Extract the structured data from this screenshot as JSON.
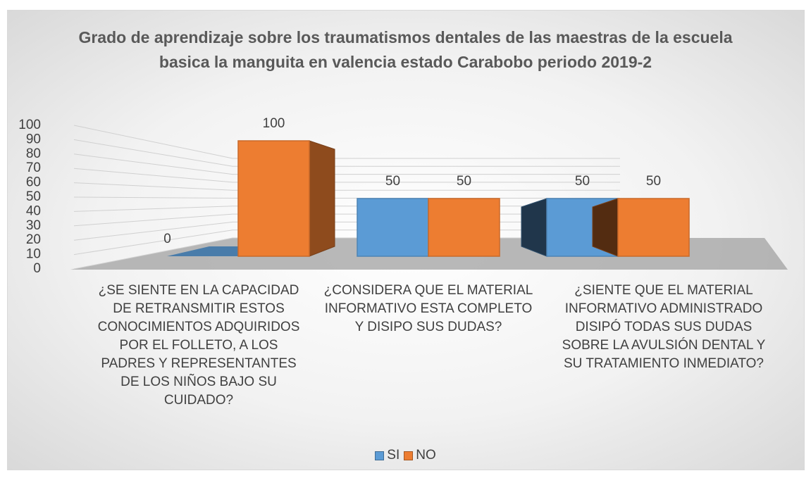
{
  "chart_data": {
    "type": "bar3d",
    "title": "Grado de aprendizaje sobre los traumatismos dentales de las maestras de la escuela basica la manguita en valencia estado Carabobo periodo 2019-2",
    "categories": [
      "¿SE SIENTE EN LA CAPACIDAD DE RETRANSMITIR ESTOS CONOCIMIENTOS ADQUIRIDOS POR EL FOLLETO, A LOS PADRES Y REPRESENTANTES DE LOS NIÑOS BAJO SU CUIDADO?",
      "¿CONSIDERA QUE EL MATERIAL INFORMATIVO ESTA COMPLETO Y DISIPO SUS DUDAS?",
      "¿SIENTE QUE EL MATERIAL INFORMATIVO ADMINISTRADO DISIPÓ TODAS SUS DUDAS SOBRE LA AVULSIÓN DENTAL Y SU TRATAMIENTO INMEDIATO?"
    ],
    "series": [
      {
        "name": "SI",
        "color": "#5b9bd5",
        "values": [
          0,
          50,
          50
        ]
      },
      {
        "name": "NO",
        "color": "#ed7d31",
        "values": [
          100,
          50,
          50
        ]
      }
    ],
    "ylim": [
      0,
      100
    ],
    "yticks": [
      0,
      10,
      20,
      30,
      40,
      50,
      60,
      70,
      80,
      90,
      100
    ],
    "grid": true,
    "legend": "bottom"
  }
}
